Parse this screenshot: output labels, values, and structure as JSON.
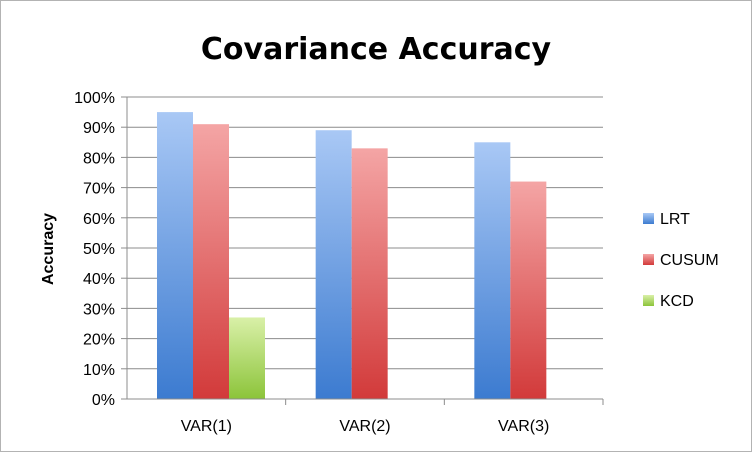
{
  "chart_data": {
    "type": "bar",
    "title": "Covariance Accuracy",
    "ylabel": "Accuracy",
    "xlabel": "",
    "categories": [
      "VAR(1)",
      "VAR(2)",
      "VAR(3)"
    ],
    "ylim": [
      0,
      100
    ],
    "ytick_step": 10,
    "ytick_format": "percent",
    "grid": true,
    "legend_position": "right",
    "series": [
      {
        "name": "LRT",
        "values": [
          95,
          89,
          85
        ],
        "color": "#5b8fd9"
      },
      {
        "name": "CUSUM",
        "values": [
          91,
          83,
          72
        ],
        "color": "#e05a5a"
      },
      {
        "name": "KCD",
        "values": [
          27,
          null,
          null
        ],
        "color": "#9bc94c"
      }
    ]
  }
}
